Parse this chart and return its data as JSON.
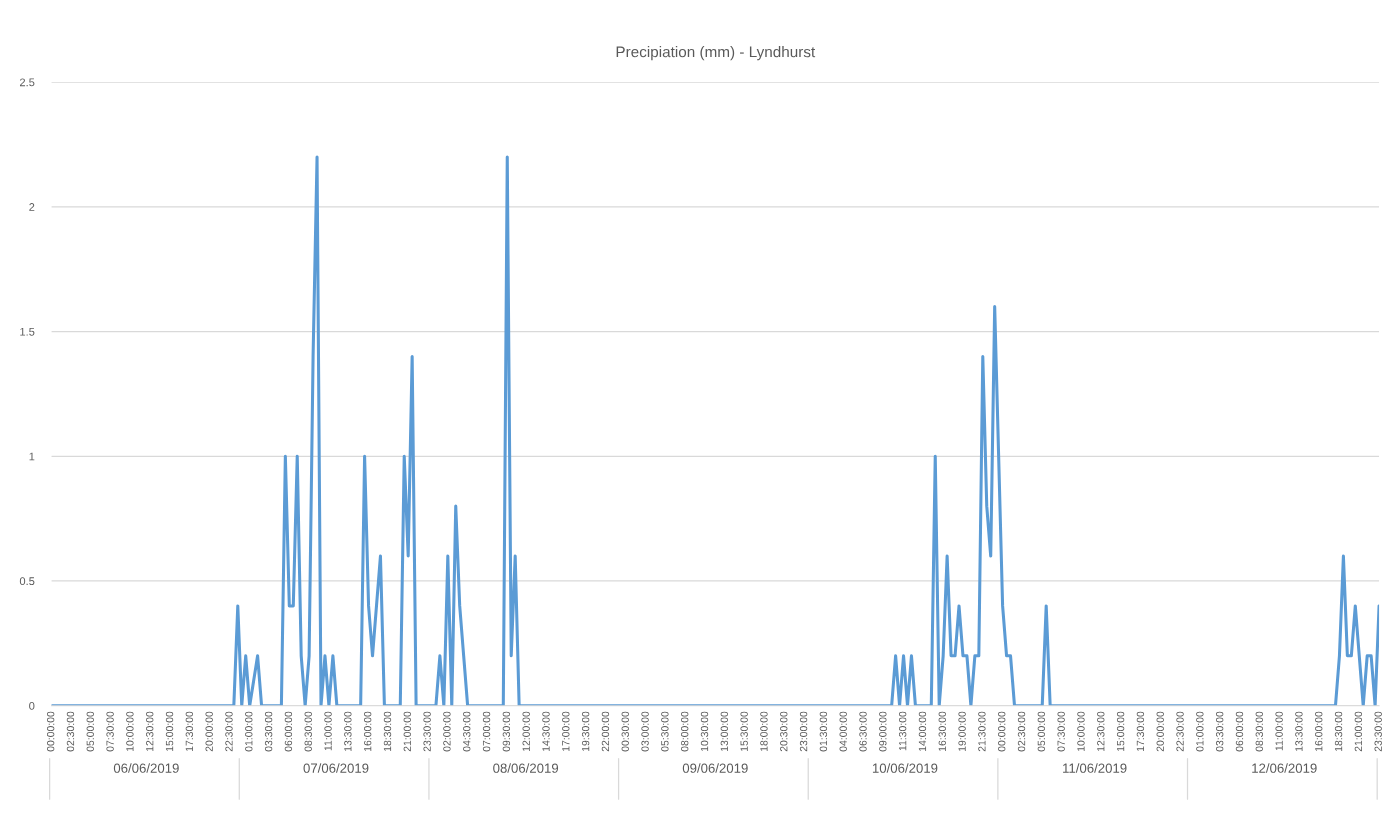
{
  "chart_data": {
    "type": "line",
    "title": "Precipiation (mm) - Lyndhurst",
    "x": [
      "2019-06-06T00:00",
      "2019-06-06T23:00",
      "2019-06-06T23:30",
      "2019-06-07T00:00",
      "2019-06-07T00:30",
      "2019-06-07T01:00",
      "2019-06-07T02:00",
      "2019-06-07T02:30",
      "2019-06-07T05:00",
      "2019-06-07T05:30",
      "2019-06-07T06:00",
      "2019-06-07T06:30",
      "2019-06-07T07:00",
      "2019-06-07T07:30",
      "2019-06-07T08:00",
      "2019-06-07T08:30",
      "2019-06-07T09:00",
      "2019-06-07T09:30",
      "2019-06-07T10:00",
      "2019-06-07T10:30",
      "2019-06-07T11:00",
      "2019-06-07T11:30",
      "2019-06-07T12:00",
      "2019-06-07T15:00",
      "2019-06-07T15:30",
      "2019-06-07T16:00",
      "2019-06-07T16:30",
      "2019-06-07T17:00",
      "2019-06-07T17:30",
      "2019-06-07T18:00",
      "2019-06-07T20:00",
      "2019-06-07T20:30",
      "2019-06-07T21:00",
      "2019-06-07T21:30",
      "2019-06-07T22:00",
      "2019-06-08T00:30",
      "2019-06-08T01:00",
      "2019-06-08T01:30",
      "2019-06-08T02:00",
      "2019-06-08T02:30",
      "2019-06-08T03:00",
      "2019-06-08T03:30",
      "2019-06-08T04:00",
      "2019-06-08T04:30",
      "2019-06-08T09:00",
      "2019-06-08T09:30",
      "2019-06-08T10:00",
      "2019-06-08T10:30",
      "2019-06-08T11:00",
      "2019-06-10T10:00",
      "2019-06-10T10:30",
      "2019-06-10T11:00",
      "2019-06-10T11:30",
      "2019-06-10T12:00",
      "2019-06-10T12:30",
      "2019-06-10T13:00",
      "2019-06-10T15:00",
      "2019-06-10T15:30",
      "2019-06-10T16:00",
      "2019-06-10T16:30",
      "2019-06-10T17:00",
      "2019-06-10T17:30",
      "2019-06-10T18:00",
      "2019-06-10T18:30",
      "2019-06-10T19:00",
      "2019-06-10T19:30",
      "2019-06-10T20:00",
      "2019-06-10T20:30",
      "2019-06-10T21:00",
      "2019-06-10T21:30",
      "2019-06-10T22:00",
      "2019-06-10T22:30",
      "2019-06-10T23:00",
      "2019-06-10T23:30",
      "2019-06-11T00:00",
      "2019-06-11T00:30",
      "2019-06-11T01:00",
      "2019-06-11T01:30",
      "2019-06-11T05:00",
      "2019-06-11T05:30",
      "2019-06-11T06:00",
      "2019-06-12T18:00",
      "2019-06-12T18:30",
      "2019-06-12T19:00",
      "2019-06-12T19:30",
      "2019-06-12T20:00",
      "2019-06-12T20:30",
      "2019-06-12T21:00",
      "2019-06-12T21:30",
      "2019-06-12T22:00",
      "2019-06-12T22:30",
      "2019-06-12T23:00",
      "2019-06-12T23:30"
    ],
    "series": [
      {
        "color": "#5b9bd5",
        "values": [
          0,
          0,
          0.4,
          0,
          0.2,
          0,
          0.2,
          0,
          0,
          1.0,
          0.4,
          0.4,
          1.0,
          0.2,
          0,
          0.2,
          1.4,
          2.2,
          0,
          0.2,
          0,
          0.2,
          0,
          0,
          1.0,
          0.4,
          0.2,
          0.4,
          0.6,
          0,
          0,
          1.0,
          0.6,
          1.4,
          0,
          0,
          0.2,
          0,
          0.6,
          0,
          0.8,
          0.4,
          0.2,
          0,
          0,
          2.2,
          0.2,
          0.6,
          0,
          0,
          0.2,
          0,
          0.2,
          0,
          0.2,
          0,
          0,
          1.0,
          0,
          0.2,
          0.6,
          0.2,
          0.2,
          0.4,
          0.2,
          0.2,
          0,
          0.2,
          0.2,
          1.4,
          0.8,
          0.6,
          1.6,
          1.0,
          0.4,
          0.2,
          0.2,
          0,
          0,
          0.4,
          0,
          0,
          0.2,
          0.6,
          0.2,
          0.2,
          0.4,
          0.2,
          0,
          0.2,
          0.2,
          0,
          0.4
        ]
      }
    ],
    "xlim": [
      "2019-06-06T00:00",
      "2019-06-12T23:30"
    ],
    "xticks": [
      {
        "value": "2019-06-06T00:00",
        "label": "00:00:00"
      },
      {
        "value": "2019-06-06T02:30",
        "label": "02:30:00"
      },
      {
        "value": "2019-06-06T05:00",
        "label": "05:00:00"
      },
      {
        "value": "2019-06-06T07:30",
        "label": "07:30:00"
      },
      {
        "value": "2019-06-06T10:00",
        "label": "10:00:00"
      },
      {
        "value": "2019-06-06T12:30",
        "label": "12:30:00"
      },
      {
        "value": "2019-06-06T15:00",
        "label": "15:00:00"
      },
      {
        "value": "2019-06-06T17:30",
        "label": "17:30:00"
      },
      {
        "value": "2019-06-06T20:00",
        "label": "20:00:00"
      },
      {
        "value": "2019-06-06T22:30",
        "label": "22:30:00"
      },
      {
        "value": "2019-06-07T01:00",
        "label": "01:00:00"
      },
      {
        "value": "2019-06-07T03:30",
        "label": "03:30:00"
      },
      {
        "value": "2019-06-07T06:00",
        "label": "06:00:00"
      },
      {
        "value": "2019-06-07T08:30",
        "label": "08:30:00"
      },
      {
        "value": "2019-06-07T11:00",
        "label": "11:00:00"
      },
      {
        "value": "2019-06-07T13:30",
        "label": "13:30:00"
      },
      {
        "value": "2019-06-07T16:00",
        "label": "16:00:00"
      },
      {
        "value": "2019-06-07T18:30",
        "label": "18:30:00"
      },
      {
        "value": "2019-06-07T21:00",
        "label": "21:00:00"
      },
      {
        "value": "2019-06-07T23:30",
        "label": "23:30:00"
      },
      {
        "value": "2019-06-08T02:00",
        "label": "02:00:00"
      },
      {
        "value": "2019-06-08T04:30",
        "label": "04:30:00"
      },
      {
        "value": "2019-06-08T07:00",
        "label": "07:00:00"
      },
      {
        "value": "2019-06-08T09:30",
        "label": "09:30:00"
      },
      {
        "value": "2019-06-08T12:00",
        "label": "12:00:00"
      },
      {
        "value": "2019-06-08T14:30",
        "label": "14:30:00"
      },
      {
        "value": "2019-06-08T17:00",
        "label": "17:00:00"
      },
      {
        "value": "2019-06-08T19:30",
        "label": "19:30:00"
      },
      {
        "value": "2019-06-08T22:00",
        "label": "22:00:00"
      },
      {
        "value": "2019-06-09T00:30",
        "label": "00:30:00"
      },
      {
        "value": "2019-06-09T03:00",
        "label": "03:00:00"
      },
      {
        "value": "2019-06-09T05:30",
        "label": "05:30:00"
      },
      {
        "value": "2019-06-09T08:00",
        "label": "08:00:00"
      },
      {
        "value": "2019-06-09T10:30",
        "label": "10:30:00"
      },
      {
        "value": "2019-06-09T13:00",
        "label": "13:00:00"
      },
      {
        "value": "2019-06-09T15:30",
        "label": "15:30:00"
      },
      {
        "value": "2019-06-09T18:00",
        "label": "18:00:00"
      },
      {
        "value": "2019-06-09T20:30",
        "label": "20:30:00"
      },
      {
        "value": "2019-06-09T23:00",
        "label": "23:00:00"
      },
      {
        "value": "2019-06-10T01:30",
        "label": "01:30:00"
      },
      {
        "value": "2019-06-10T04:00",
        "label": "04:00:00"
      },
      {
        "value": "2019-06-10T06:30",
        "label": "06:30:00"
      },
      {
        "value": "2019-06-10T09:00",
        "label": "09:00:00"
      },
      {
        "value": "2019-06-10T11:30",
        "label": "11:30:00"
      },
      {
        "value": "2019-06-10T14:00",
        "label": "14:00:00"
      },
      {
        "value": "2019-06-10T16:30",
        "label": "16:30:00"
      },
      {
        "value": "2019-06-10T19:00",
        "label": "19:00:00"
      },
      {
        "value": "2019-06-10T21:30",
        "label": "21:30:00"
      },
      {
        "value": "2019-06-11T00:00",
        "label": "00:00:00"
      },
      {
        "value": "2019-06-11T02:30",
        "label": "02:30:00"
      },
      {
        "value": "2019-06-11T05:00",
        "label": "05:00:00"
      },
      {
        "value": "2019-06-11T07:30",
        "label": "07:30:00"
      },
      {
        "value": "2019-06-11T10:00",
        "label": "10:00:00"
      },
      {
        "value": "2019-06-11T12:30",
        "label": "12:30:00"
      },
      {
        "value": "2019-06-11T15:00",
        "label": "15:00:00"
      },
      {
        "value": "2019-06-11T17:30",
        "label": "17:30:00"
      },
      {
        "value": "2019-06-11T20:00",
        "label": "20:00:00"
      },
      {
        "value": "2019-06-11T22:30",
        "label": "22:30:00"
      },
      {
        "value": "2019-06-12T01:00",
        "label": "01:00:00"
      },
      {
        "value": "2019-06-12T03:30",
        "label": "03:30:00"
      },
      {
        "value": "2019-06-12T06:00",
        "label": "06:00:00"
      },
      {
        "value": "2019-06-12T08:30",
        "label": "08:30:00"
      },
      {
        "value": "2019-06-12T11:00",
        "label": "11:00:00"
      },
      {
        "value": "2019-06-12T13:30",
        "label": "13:30:00"
      },
      {
        "value": "2019-06-12T16:00",
        "label": "16:00:00"
      },
      {
        "value": "2019-06-12T18:30",
        "label": "18:30:00"
      },
      {
        "value": "2019-06-12T21:00",
        "label": "21:00:00"
      },
      {
        "value": "2019-06-12T23:30",
        "label": "23:30:00"
      }
    ],
    "ylim": [
      0,
      2.5
    ],
    "yticks": [
      0,
      0.5,
      1,
      1.5,
      2,
      2.5
    ],
    "grid": "y",
    "annotations": [
      "06/06/2019",
      "07/06/2019",
      "08/06/2019",
      "09/06/2019",
      "10/06/2019",
      "11/06/2019",
      "12/06/2019"
    ]
  }
}
